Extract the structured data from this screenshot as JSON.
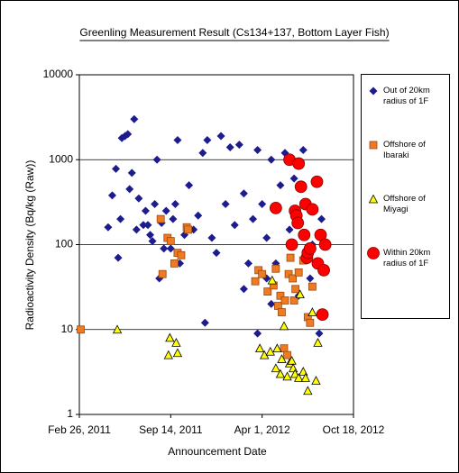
{
  "chart_data": {
    "type": "scatter",
    "title": "Greenling Measurement Result (Cs134+137, Bottom Layer Fish)",
    "x_label": "Announcement Date",
    "y_label": "Radioactivity Density (Bq/kg (Raw))",
    "xlim": [
      40600,
      41200
    ],
    "xticks": [
      {
        "value": 40600,
        "label": "Feb 26, 2011"
      },
      {
        "value": 40800,
        "label": "Sep 14, 2011"
      },
      {
        "value": 41000,
        "label": "Apr 1, 2012"
      },
      {
        "value": 41200,
        "label": "Oct 18, 2012"
      }
    ],
    "ylim": [
      1,
      10000
    ],
    "yticks": [
      1,
      10,
      100,
      1000,
      10000
    ],
    "yscale": "log",
    "grid": true,
    "legend": "right",
    "series": [
      {
        "name": "Out of 20km radius of 1F",
        "color": "#1c1c8f",
        "marker": "diamond",
        "x": [
          40663,
          40672,
          40680,
          40685,
          40690,
          40693,
          40700,
          40706,
          40710,
          40715,
          40720,
          40725,
          40730,
          40740,
          40745,
          40750,
          40755,
          40760,
          40765,
          40770,
          40775,
          40780,
          40785,
          40790,
          40800,
          40805,
          40810,
          40815,
          40820,
          40830,
          40840,
          40850,
          40860,
          40870,
          40875,
          40880,
          40890,
          40900,
          40910,
          40920,
          40930,
          40940,
          40950,
          40960,
          40970,
          40980,
          40990,
          41000,
          41010,
          41020,
          41030,
          41040,
          41050,
          41060,
          41070,
          41080,
          41090,
          41100,
          41105,
          41110,
          41120,
          41125,
          41130,
          41020,
          40990,
          40960,
          41010
        ],
        "values": [
          160,
          380,
          780,
          70,
          200,
          1800,
          1900,
          2000,
          450,
          700,
          3000,
          150,
          350,
          170,
          250,
          170,
          130,
          110,
          300,
          1000,
          40,
          180,
          90,
          250,
          90,
          200,
          300,
          1700,
          60,
          130,
          500,
          150,
          220,
          1200,
          12,
          1700,
          120,
          80,
          1900,
          300,
          1400,
          170,
          1500,
          400,
          60,
          200,
          1300,
          300,
          120,
          1000,
          60,
          500,
          1200,
          150,
          600,
          25,
          1300,
          300,
          40,
          100,
          550,
          9,
          200,
          20,
          9,
          30,
          40
        ]
      },
      {
        "name": "Offshore of Ibaraki",
        "color": "#f07a22",
        "marker": "square",
        "x": [
          40603,
          40778,
          40782,
          40793,
          40800,
          40808,
          40815,
          40823,
          40835,
          40838,
          40985,
          40992,
          41000,
          41012,
          41025,
          41030,
          41035,
          41040,
          41043,
          41048,
          41050,
          41055,
          41058,
          41062,
          41067,
          41070,
          41073,
          41080,
          41090,
          41100,
          41105,
          41110
        ],
        "values": [
          10,
          200,
          45,
          120,
          110,
          60,
          80,
          75,
          160,
          150,
          37,
          50,
          45,
          28,
          33,
          52,
          19,
          25,
          16,
          6,
          22,
          5,
          45,
          70,
          40,
          22,
          30,
          47,
          65,
          14,
          12,
          32
        ]
      },
      {
        "name": "Offshore of Miyagi",
        "color": "#ffff00",
        "marker": "triangle",
        "x": [
          40683,
          40795,
          40798,
          40812,
          40815,
          40995,
          41005,
          41018,
          41022,
          41030,
          41033,
          41040,
          41043,
          41048,
          41055,
          41060,
          41065,
          41068,
          41072,
          41080,
          41083,
          41090,
          41095,
          41100,
          41110,
          41118,
          41122
        ],
        "values": [
          10,
          5,
          8,
          7,
          5.3,
          6,
          5,
          5.5,
          38,
          3.5,
          6,
          3,
          4.5,
          11,
          2.8,
          4,
          4.3,
          3.5,
          3,
          2.7,
          26,
          3.2,
          2.7,
          1.9,
          16,
          2.5,
          7
        ]
      },
      {
        "name": "Within 20km radius of 1F",
        "color": "#ff0000",
        "marker": "circle",
        "x": [
          41030,
          41060,
          41065,
          41072,
          41075,
          41078,
          41080,
          41085,
          41092,
          41095,
          41098,
          41100,
          41105,
          41110,
          41120,
          41122,
          41128,
          41132,
          41135,
          41138
        ],
        "values": [
          270,
          1000,
          100,
          250,
          220,
          180,
          900,
          480,
          130,
          300,
          70,
          80,
          90,
          260,
          550,
          60,
          130,
          15,
          50,
          100
        ]
      }
    ]
  }
}
